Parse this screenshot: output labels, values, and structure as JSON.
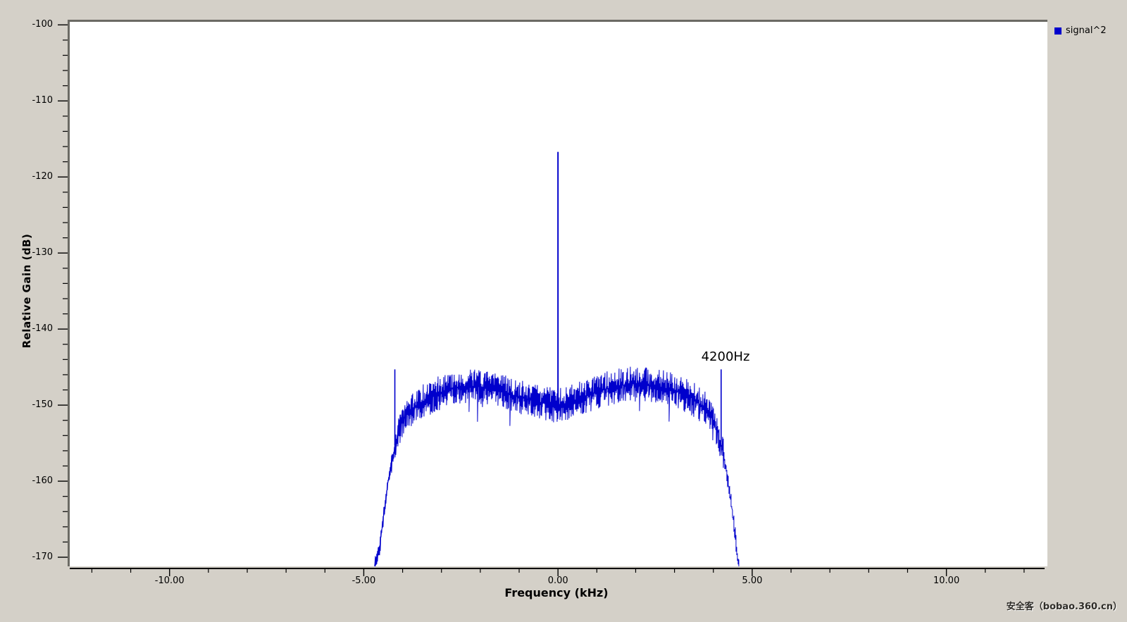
{
  "window": {
    "background_color": "#d4d0c8"
  },
  "legend": {
    "position": "top-right"
  },
  "watermark": {
    "text": "安全客（bobao.360.cn）"
  },
  "chart_data": {
    "type": "line",
    "title": "",
    "xlabel": "Frequency (kHz)",
    "ylabel": "Relative Gain (dB)",
    "xlim": [
      -12.57,
      12.6
    ],
    "ylim": [
      -171.2,
      -99.6
    ],
    "grid": false,
    "legend_position": "top-right",
    "x_major_ticks": [
      {
        "value": -10,
        "label": "-10.00"
      },
      {
        "value": -5,
        "label": "-5.00"
      },
      {
        "value": 0,
        "label": "0.00"
      },
      {
        "value": 5,
        "label": "5.00"
      },
      {
        "value": 10,
        "label": "10.00"
      }
    ],
    "x_minor_tick_step_khz": 1,
    "y_major_ticks": [
      {
        "value": -100,
        "label": "-100"
      },
      {
        "value": -110,
        "label": "-110"
      },
      {
        "value": -120,
        "label": "-120"
      },
      {
        "value": -130,
        "label": "-130"
      },
      {
        "value": -140,
        "label": "-140"
      },
      {
        "value": -150,
        "label": "-150"
      },
      {
        "value": -160,
        "label": "-160"
      },
      {
        "value": -170,
        "label": "-170"
      }
    ],
    "y_minor_tick_step_db": 2,
    "series": [
      {
        "name": "signal^2",
        "color": "#0000cc",
        "occupied_band_khz": [
          -4.72,
          4.66
        ],
        "noise_peak_to_peak_db": 4.6,
        "envelope_points": [
          [
            -4.72,
            -171.2
          ],
          [
            -4.6,
            -169.0
          ],
          [
            -4.5,
            -165.0
          ],
          [
            -4.42,
            -161.5
          ],
          [
            -4.32,
            -158.5
          ],
          [
            -4.22,
            -156.2
          ],
          [
            -4.12,
            -154.0
          ],
          [
            -4.02,
            -152.2
          ],
          [
            -3.9,
            -151.2
          ],
          [
            -3.75,
            -150.6
          ],
          [
            -3.6,
            -150.0
          ],
          [
            -3.4,
            -149.3
          ],
          [
            -3.1,
            -148.5
          ],
          [
            -2.8,
            -147.9
          ],
          [
            -2.5,
            -147.6
          ],
          [
            -2.2,
            -147.5
          ],
          [
            -1.9,
            -147.7
          ],
          [
            -1.6,
            -148.0
          ],
          [
            -1.3,
            -148.4
          ],
          [
            -1.0,
            -148.9
          ],
          [
            -0.7,
            -149.3
          ],
          [
            -0.4,
            -149.7
          ],
          [
            -0.15,
            -150.0
          ],
          [
            0.0,
            -150.1
          ],
          [
            0.15,
            -149.9
          ],
          [
            0.4,
            -149.4
          ],
          [
            0.7,
            -148.8
          ],
          [
            1.0,
            -148.3
          ],
          [
            1.3,
            -147.8
          ],
          [
            1.6,
            -147.4
          ],
          [
            1.9,
            -147.2
          ],
          [
            2.2,
            -147.3
          ],
          [
            2.5,
            -147.5
          ],
          [
            2.8,
            -147.8
          ],
          [
            3.1,
            -148.3
          ],
          [
            3.4,
            -149.0
          ],
          [
            3.6,
            -149.6
          ],
          [
            3.8,
            -150.4
          ],
          [
            3.95,
            -151.4
          ],
          [
            4.1,
            -153.2
          ],
          [
            4.2,
            -155.3
          ],
          [
            4.3,
            -157.8
          ],
          [
            4.4,
            -160.8
          ],
          [
            4.5,
            -164.5
          ],
          [
            4.6,
            -168.8
          ],
          [
            4.66,
            -171.2
          ]
        ],
        "spikes": [
          {
            "freq_khz": -4.2,
            "peak_db": -145.3
          },
          {
            "freq_khz": 0.0,
            "peak_db": -116.7
          },
          {
            "freq_khz": 4.2,
            "peak_db": -145.3
          }
        ]
      }
    ],
    "annotations": [
      {
        "text": "4200Hz",
        "freq_khz": 4.2,
        "db": -144.5
      }
    ]
  }
}
